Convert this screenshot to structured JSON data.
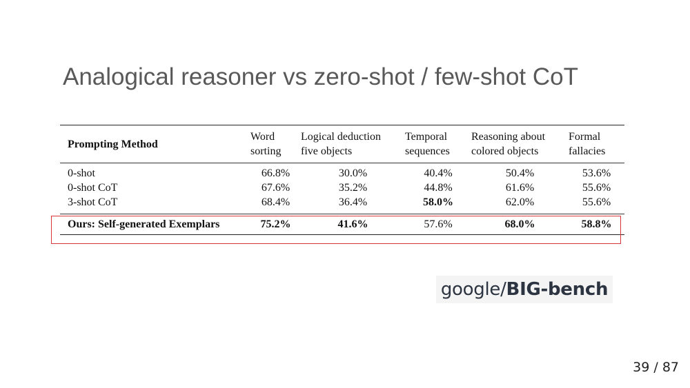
{
  "slide": {
    "title": "Analogical reasoner vs zero-shot / few-shot CoT",
    "page_current": "39",
    "page_sep": "/",
    "page_total": "87"
  },
  "table": {
    "headers": [
      {
        "lines": [
          "Prompting Method"
        ]
      },
      {
        "lines": [
          "Word",
          "sorting"
        ]
      },
      {
        "lines": [
          "Logical deduction",
          "five objects"
        ]
      },
      {
        "lines": [
          "Temporal",
          "sequences"
        ]
      },
      {
        "lines": [
          "Reasoning about",
          "colored objects"
        ]
      },
      {
        "lines": [
          "Formal",
          "fallacies"
        ]
      }
    ],
    "rows": [
      {
        "method": "0-shot",
        "values": [
          "66.8%",
          "30.0%",
          "40.4%",
          "50.4%",
          "53.6%"
        ]
      },
      {
        "method": "0-shot CoT",
        "values": [
          "67.6%",
          "35.2%",
          "44.8%",
          "61.6%",
          "55.6%"
        ]
      },
      {
        "method": "3-shot CoT",
        "values": [
          "68.4%",
          "36.4%",
          "58.0%",
          "62.0%",
          "55.6%"
        ]
      }
    ],
    "ours": {
      "method": "Ours: Self-generated Exemplars",
      "values": [
        "75.2%",
        "41.6%",
        "57.6%",
        "68.0%",
        "58.8%"
      ]
    }
  },
  "logo": {
    "prefix": "google/",
    "strong": "BIG",
    "suffix": "-bench"
  },
  "colors": {
    "title": "#595959",
    "highlight_box": "#d9343a",
    "logo_bg": "#f4f4f4",
    "logo_text": "#2b3440"
  }
}
